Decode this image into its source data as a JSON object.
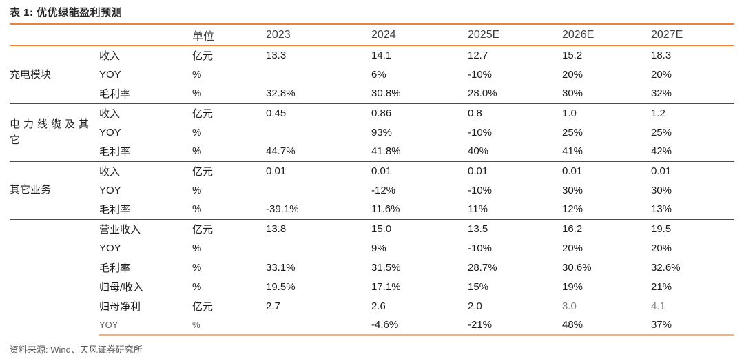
{
  "title": "表 1: 优优绿能盈利预测",
  "source_note": "资料来源: Wind、天风证券研究所",
  "colors": {
    "accent_orange": "#F08033",
    "accent_orange_light": "#F5B078",
    "separator_dark": "#4d4d4d",
    "muted_value": "#7f7f7f",
    "text_main": "#1c1c1c"
  },
  "table": {
    "header": {
      "unit_label": "单位",
      "years": [
        "2023",
        "2024",
        "2025E",
        "2026E",
        "2027E"
      ]
    },
    "groups": [
      {
        "name": "充电模块",
        "rows": [
          {
            "metric": "收入",
            "unit": "亿元",
            "values": [
              "13.3",
              "14.1",
              "12.7",
              "15.2",
              "18.3"
            ]
          },
          {
            "metric": "YOY",
            "unit": "%",
            "values": [
              "",
              "6%",
              "-10%",
              "20%",
              "20%"
            ]
          },
          {
            "metric": "毛利率",
            "unit": "%",
            "values": [
              "32.8%",
              "30.8%",
              "28.0%",
              "30%",
              "32%"
            ]
          }
        ]
      },
      {
        "name": "电力线缆及其它",
        "rows": [
          {
            "metric": "收入",
            "unit": "亿元",
            "values": [
              "0.45",
              "0.86",
              "0.8",
              "1.0",
              "1.2"
            ]
          },
          {
            "metric": "YOY",
            "unit": "%",
            "values": [
              "",
              "93%",
              "-10%",
              "25%",
              "25%"
            ]
          },
          {
            "metric": "毛利率",
            "unit": "%",
            "values": [
              "44.7%",
              "41.8%",
              "40%",
              "41%",
              "42%"
            ]
          }
        ]
      },
      {
        "name": "其它业务",
        "rows": [
          {
            "metric": "收入",
            "unit": "亿元",
            "values": [
              "0.01",
              "0.01",
              "0.01",
              "0.01",
              "0.01"
            ]
          },
          {
            "metric": "YOY",
            "unit": "%",
            "values": [
              "",
              "-12%",
              "-10%",
              "30%",
              "30%"
            ]
          },
          {
            "metric": "毛利率",
            "unit": "%",
            "values": [
              "-39.1%",
              "11.6%",
              "11%",
              "12%",
              "13%"
            ]
          }
        ]
      },
      {
        "name": "",
        "rows": [
          {
            "metric": "营业收入",
            "unit": "亿元",
            "values": [
              "13.8",
              "15.0",
              "13.5",
              "16.2",
              "19.5"
            ]
          },
          {
            "metric": "YOY",
            "unit": "%",
            "values": [
              "",
              "9%",
              "-10%",
              "20%",
              "20%"
            ]
          },
          {
            "metric": "毛利率",
            "unit": "%",
            "values": [
              "33.1%",
              "31.5%",
              "28.7%",
              "30.6%",
              "32.6%"
            ]
          },
          {
            "metric": "归母/收入",
            "unit": "%",
            "values": [
              "19.5%",
              "17.1%",
              "15%",
              "19%",
              "21%"
            ]
          },
          {
            "metric": "归母净利",
            "unit": "亿元",
            "values": [
              "2.7",
              "2.6",
              "2.0",
              "3.0",
              "4.1"
            ]
          },
          {
            "metric": "YOY",
            "unit": "%",
            "values": [
              "",
              "-4.6%",
              "-21%",
              "48%",
              "37%"
            ]
          }
        ]
      }
    ]
  }
}
